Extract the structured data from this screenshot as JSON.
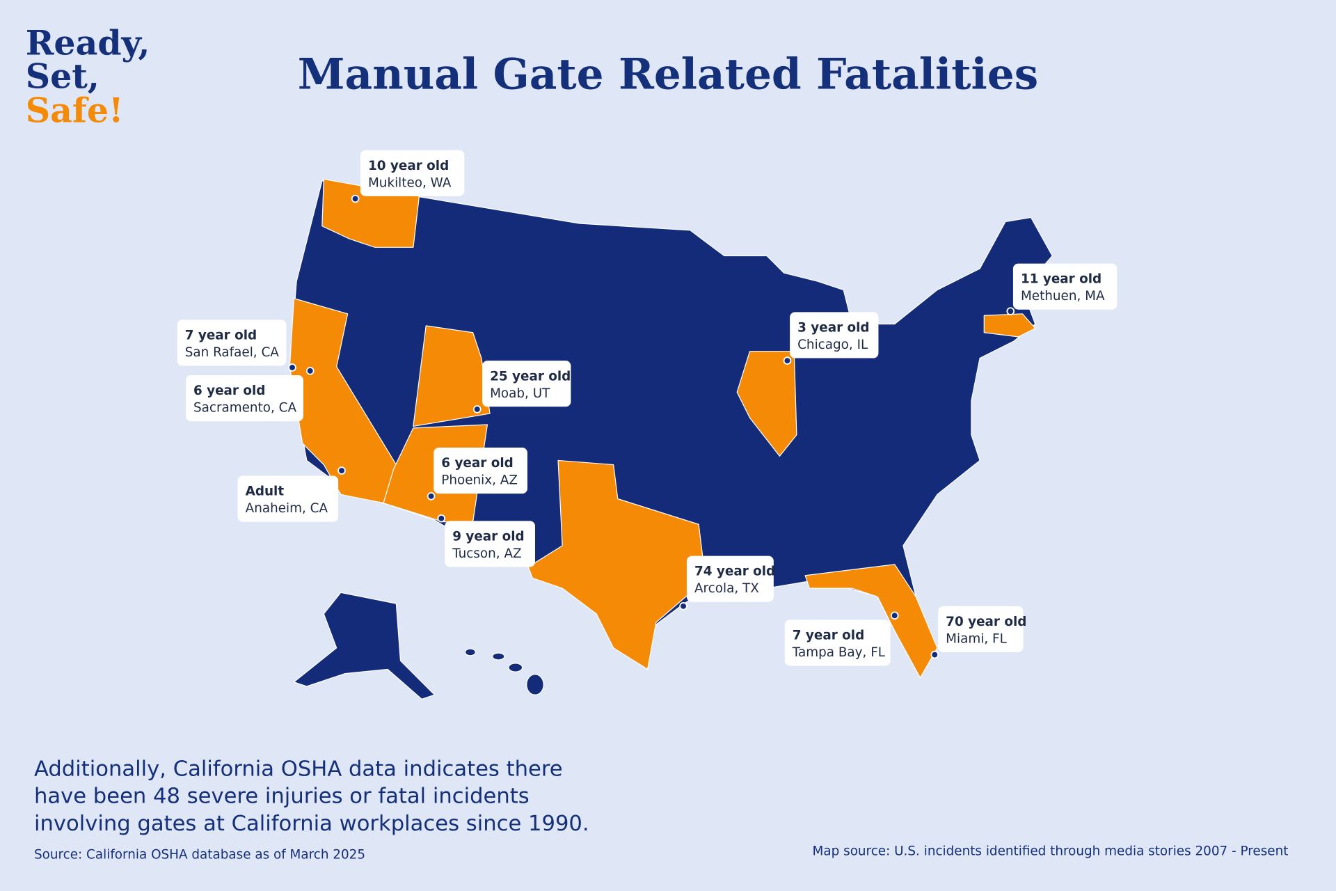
{
  "logo": {
    "lines": [
      "Ready,",
      "Set,",
      "Safe!"
    ]
  },
  "title": "Manual Gate Related Fatalities",
  "incidents": [
    {
      "age": "10 year old",
      "place": "Mukilteo, WA"
    },
    {
      "age": "11 year old",
      "place": "Methuen, MA"
    },
    {
      "age": "7 year old",
      "place": "San Rafael, CA"
    },
    {
      "age": "3 year old",
      "place": "Chicago, IL"
    },
    {
      "age": "6 year old",
      "place": "Sacramento, CA"
    },
    {
      "age": "25 year old",
      "place": "Moab, UT"
    },
    {
      "age": "6 year old",
      "place": "Phoenix, AZ"
    },
    {
      "age": "Adult",
      "place": "Anaheim, CA"
    },
    {
      "age": "9 year old",
      "place": "Tucson, AZ"
    },
    {
      "age": "74 year old",
      "place": "Arcola, TX"
    },
    {
      "age": "70 year old",
      "place": "Miami, FL"
    },
    {
      "age": "7 year old",
      "place": "Tampa Bay, FL"
    }
  ],
  "note": {
    "lines": [
      "Additionally, California OSHA data indicates there",
      "have been 48 severe injuries or fatal incidents",
      "involving gates at California workplaces since 1990."
    ]
  },
  "source": "Source: California OSHA database as of March 2025",
  "map_source": "Map source: U.S. incidents identified through media stories 2007 - Present"
}
